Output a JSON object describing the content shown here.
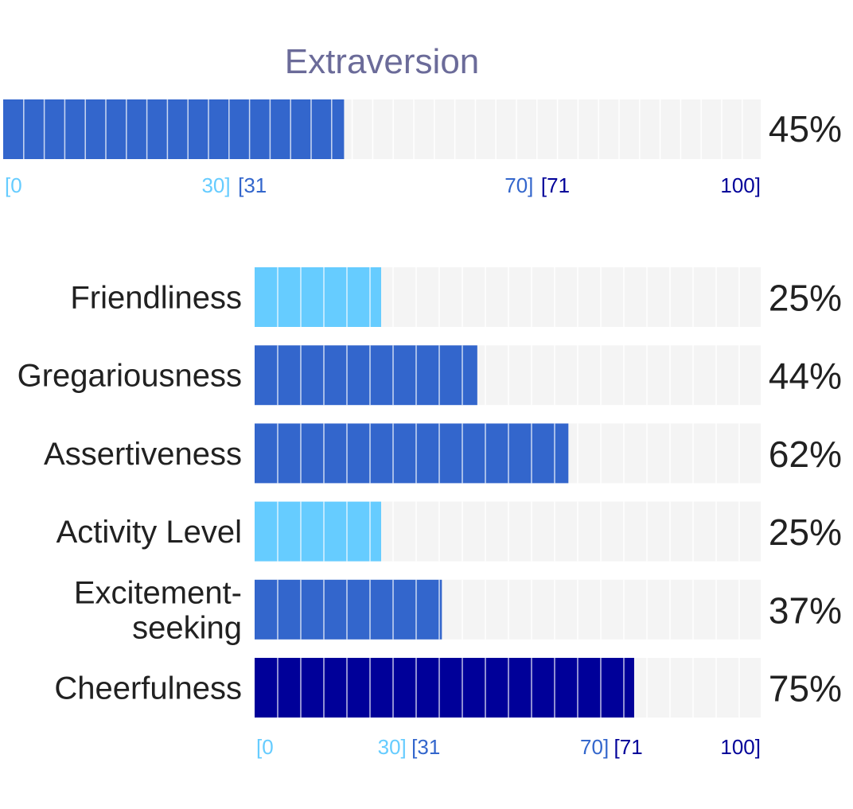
{
  "chart_data": [
    {
      "type": "bar",
      "orientation": "horizontal",
      "title": "Extraversion",
      "value": 45,
      "value_label": "45%",
      "xlim": [
        0,
        100
      ],
      "bands": [
        {
          "label_start": "[0",
          "label_end": "30]",
          "min": 0,
          "max": 30,
          "color": "#66CCFF"
        },
        {
          "label_start": "[31",
          "label_end": "70]",
          "min": 31,
          "max": 70,
          "color": "#3366CC"
        },
        {
          "label_start": "[71",
          "label_end": "100]",
          "min": 71,
          "max": 100,
          "color": "#000099"
        }
      ]
    },
    {
      "type": "bar",
      "orientation": "horizontal",
      "categories": [
        "Friendliness",
        "Gregariousness",
        "Assertiveness",
        "Activity Level",
        "Excitement-seeking",
        "Cheerfulness"
      ],
      "category_lines": [
        [
          "Friendliness"
        ],
        [
          "Gregariousness"
        ],
        [
          "Assertiveness"
        ],
        [
          "Activity Level"
        ],
        [
          "Excitement-",
          "seeking"
        ],
        [
          "Cheerfulness"
        ]
      ],
      "values": [
        25,
        44,
        62,
        25,
        37,
        75
      ],
      "value_labels": [
        "25%",
        "44%",
        "62%",
        "25%",
        "37%",
        "75%"
      ],
      "xlim": [
        0,
        100
      ],
      "bands": [
        {
          "label_start": "[0",
          "label_end": "30]",
          "min": 0,
          "max": 30,
          "color": "#66CCFF"
        },
        {
          "label_start": "[31",
          "label_end": "70]",
          "min": 31,
          "max": 70,
          "color": "#3366CC"
        },
        {
          "label_start": "[71",
          "label_end": "100]",
          "min": 71,
          "max": 100,
          "color": "#000099"
        }
      ]
    }
  ],
  "colors": {
    "title": "#6B6B99",
    "track": "#F4F4F4",
    "divider": "#FFFFFF",
    "text": "#212121"
  }
}
